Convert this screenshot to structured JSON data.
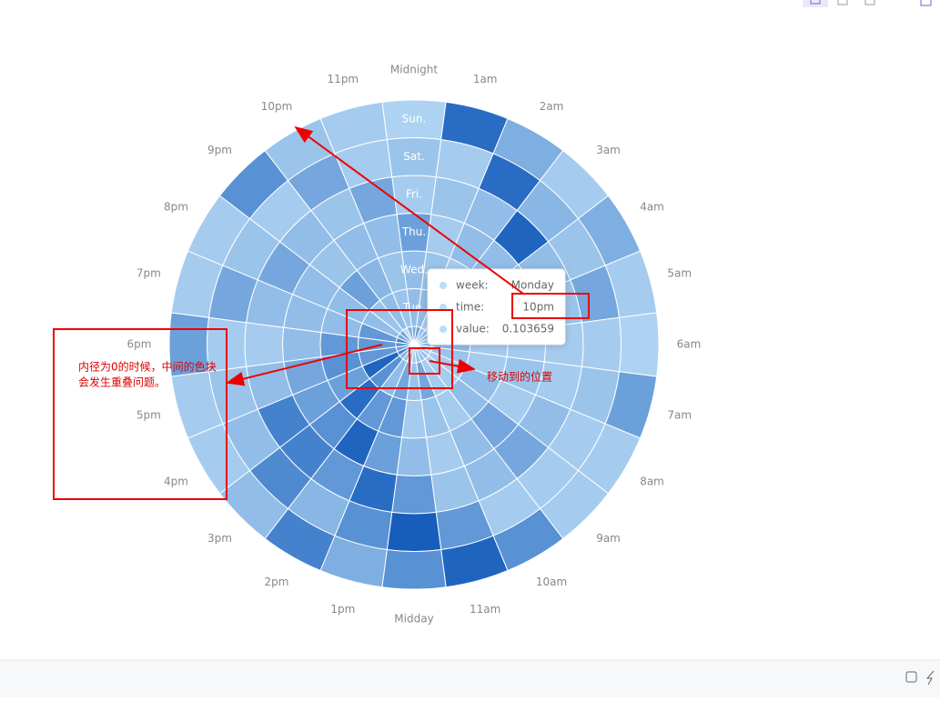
{
  "chart_data": {
    "type": "polar-heatmap",
    "hours": [
      "Midnight",
      "1am",
      "2am",
      "3am",
      "4am",
      "5am",
      "6am",
      "7am",
      "8am",
      "9am",
      "10am",
      "11am",
      "Midday",
      "1pm",
      "2pm",
      "3pm",
      "4pm",
      "5pm",
      "6pm",
      "7pm",
      "8pm",
      "9pm",
      "10pm",
      "11pm"
    ],
    "days": [
      null,
      "Tue.",
      "Wed.",
      "Thu.",
      "Fri.",
      "Sat.",
      "Sun."
    ],
    "values": [
      [
        0.4,
        0.5,
        0.3,
        0.3,
        0.3,
        0.3,
        0.3,
        0.3,
        0.2,
        0.3,
        0.3,
        0.3,
        0.2,
        0.3,
        0.3,
        0.4,
        0.7,
        0.5,
        0.6,
        0.7,
        0.5,
        0.5,
        0.103659,
        0.4
      ],
      [
        0.3,
        0.3,
        0.2,
        0.2,
        0.2,
        0.2,
        0.3,
        0.25,
        0.2,
        0.2,
        0.2,
        0.45,
        0.25,
        0.45,
        0.3,
        0.6,
        0.9,
        0.55,
        0.55,
        0.55,
        0.3,
        0.25,
        0.3,
        0.25
      ],
      [
        0.3,
        0.25,
        0.2,
        0.2,
        0.2,
        0.2,
        0.2,
        0.2,
        0.3,
        0.3,
        0.2,
        0.25,
        0.2,
        0.55,
        0.55,
        0.85,
        0.5,
        0.6,
        0.55,
        0.3,
        0.3,
        0.5,
        0.35,
        0.25
      ],
      [
        0.5,
        0.2,
        0.3,
        0.3,
        0.3,
        0.2,
        0.2,
        0.25,
        0.2,
        0.45,
        0.3,
        0.2,
        0.3,
        0.5,
        0.9,
        0.6,
        0.5,
        0.45,
        0.3,
        0.3,
        0.3,
        0.25,
        0.3,
        0.3
      ],
      [
        0.2,
        0.25,
        0.3,
        0.9,
        0.3,
        0.25,
        0.2,
        0.2,
        0.3,
        0.45,
        0.3,
        0.25,
        0.55,
        0.85,
        0.55,
        0.7,
        0.7,
        0.3,
        0.2,
        0.3,
        0.45,
        0.3,
        0.25,
        0.45
      ],
      [
        0.25,
        0.2,
        0.85,
        0.35,
        0.25,
        0.45,
        0.2,
        0.25,
        0.2,
        0.2,
        0.2,
        0.55,
        0.95,
        0.6,
        0.35,
        0.65,
        0.3,
        0.25,
        0.2,
        0.45,
        0.25,
        0.2,
        0.45,
        0.2
      ],
      [
        0.15,
        0.85,
        0.4,
        0.2,
        0.4,
        0.2,
        0.15,
        0.5,
        0.2,
        0.2,
        0.6,
        0.9,
        0.6,
        0.4,
        0.7,
        0.3,
        0.2,
        0.2,
        0.5,
        0.2,
        0.2,
        0.6,
        0.25,
        0.2
      ]
    ],
    "visual_map": {
      "min": 0,
      "max": 1,
      "colors": [
        "#cbe9fc",
        "#0c56b9"
      ]
    },
    "tooltip": {
      "week_label": "week:",
      "week": "Monday",
      "time_label": "time:",
      "value_label": "value:",
      "day": 0,
      "hour": 22
    },
    "annotations": [
      "内径为0的时候，中间的色块",
      "会发生重叠问题。",
      "移动到的位置"
    ]
  }
}
